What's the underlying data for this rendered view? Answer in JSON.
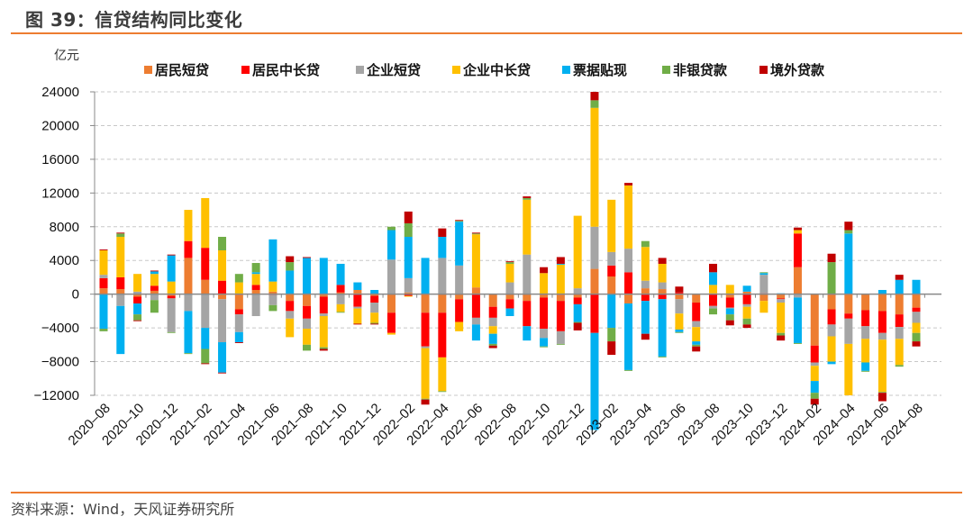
{
  "header": {
    "title": "图 39：信贷结构同比变化"
  },
  "footer": {
    "source": "资料来源：Wind，天风证券研究所"
  },
  "chart_data": {
    "type": "bar",
    "stacked": true,
    "title": "图 39：信贷结构同比变化",
    "ylabel": "亿元",
    "xlabel": "",
    "ylim": [
      -12000,
      24000
    ],
    "yticks": [
      24000,
      20000,
      16000,
      12000,
      8000,
      4000,
      0,
      -4000,
      -8000,
      -12000
    ],
    "ytick_labels": [
      "24000",
      "20000",
      "16000",
      "12000",
      "8000",
      "4000",
      "0",
      "−4000",
      "−8000",
      "−12000"
    ],
    "grid": true,
    "legend_position": "top",
    "categories": [
      "2020-08",
      "2020-09",
      "2020-10",
      "2020-11",
      "2020-12",
      "2021-01",
      "2021-02",
      "2021-03",
      "2021-04",
      "2021-05",
      "2021-06",
      "2021-07",
      "2021-08",
      "2021-09",
      "2021-10",
      "2021-11",
      "2021-12",
      "2022-01",
      "2022-02",
      "2022-03",
      "2022-04",
      "2022-05",
      "2022-06",
      "2022-07",
      "2022-08",
      "2022-09",
      "2022-10",
      "2022-11",
      "2022-12",
      "2023-01",
      "2023-02",
      "2023-03",
      "2023-04",
      "2023-05",
      "2023-06",
      "2023-07",
      "2023-08",
      "2023-09",
      "2023-10",
      "2023-11",
      "2023-12",
      "2024-01",
      "2024-02",
      "2024-03",
      "2024-04",
      "2024-05",
      "2024-06",
      "2024-07",
      "2024-08"
    ],
    "xtick_labels": [
      "2020–08",
      "2020–10",
      "2020–12",
      "2021–02",
      "2021–04",
      "2021–06",
      "2021–08",
      "2021–10",
      "2021–12",
      "2022–02",
      "2022–04",
      "2022–06",
      "2022–08",
      "2022–10",
      "2022–12",
      "2023–02",
      "2023–04",
      "2023–06",
      "2023–08",
      "2023–10",
      "2023–12",
      "2024–02",
      "2024–04",
      "2024–06",
      "2024–08"
    ],
    "series": [
      {
        "name": "居民短贷",
        "color": "#ED7D31",
        "values": [
          700,
          600,
          -300,
          400,
          -200,
          4300,
          1700,
          -600,
          -1800,
          500,
          300,
          -800,
          -1400,
          -300,
          200,
          500,
          -200,
          -2200,
          200,
          -2200,
          -2200,
          -600,
          800,
          -1500,
          -600,
          -800,
          -400,
          -800,
          -400,
          3000,
          2100,
          -1100,
          700,
          600,
          -600,
          -1000,
          100,
          -400,
          300,
          -800,
          -500,
          3200,
          -6100,
          -1800,
          -2300,
          -1900,
          -2000,
          -2400,
          -1600
        ]
      },
      {
        "name": "居民中长贷",
        "color": "#FF0000",
        "values": [
          1200,
          1400,
          -800,
          600,
          -300,
          2000,
          3800,
          1600,
          -600,
          600,
          -100,
          -1200,
          -1500,
          -2000,
          900,
          -1500,
          -800,
          -2400,
          -200,
          -4000,
          -5300,
          -2700,
          -2800,
          -1300,
          -1100,
          -3000,
          -3700,
          -3600,
          -800,
          -4600,
          1300,
          2600,
          -800,
          -600,
          200,
          -2200,
          -1400,
          -1200,
          -1200,
          100,
          -100,
          4000,
          -2000,
          -1800,
          -600,
          -1900,
          -2600,
          -1500,
          -500
        ]
      },
      {
        "name": "企业短贷",
        "color": "#A5A5A5",
        "values": [
          400,
          -1400,
          300,
          -700,
          -4000,
          -2000,
          -4000,
          -5100,
          -2100,
          -2600,
          -1200,
          -900,
          -1200,
          -300,
          -1200,
          -200,
          -1200,
          4100,
          1700,
          -200,
          4300,
          3400,
          -800,
          -1000,
          1400,
          4700,
          -1100,
          -1500,
          700,
          5000,
          1600,
          2800,
          900,
          800,
          -1700,
          -700,
          -300,
          -100,
          -300,
          2200,
          -400,
          -400,
          -400,
          -1400,
          -3000,
          -1500,
          -800,
          -1400,
          -1300
        ]
      },
      {
        "name": "企业中长贷",
        "color": "#FFC000",
        "values": [
          2900,
          4800,
          2100,
          1400,
          1500,
          3700,
          5900,
          3600,
          1400,
          1300,
          1200,
          -2200,
          -1900,
          -3700,
          -900,
          -1800,
          -1200,
          -200,
          -100,
          -6000,
          -4000,
          -1100,
          6300,
          -900,
          2200,
          6500,
          2500,
          3500,
          8600,
          14100,
          6200,
          7500,
          4000,
          2200,
          -1900,
          -1700,
          1000,
          1100,
          -1400,
          -1400,
          -3600,
          400,
          -1800,
          -3000,
          -6100,
          -2800,
          -6200,
          -3100,
          -1200
        ]
      },
      {
        "name": "票据贴现",
        "color": "#00B0F0",
        "values": [
          -4100,
          -5700,
          -1300,
          300,
          3100,
          -5000,
          -2500,
          -3600,
          -1200,
          200,
          5000,
          2800,
          4300,
          4300,
          2500,
          900,
          500,
          3500,
          4900,
          4300,
          2500,
          5200,
          -1900,
          -1200,
          -900,
          -1700,
          -1000,
          100,
          -2100,
          -11500,
          -4000,
          -7900,
          -3900,
          -6800,
          -300,
          -400,
          1500,
          -700,
          700,
          200,
          100,
          -5400,
          -1400,
          -300,
          7200,
          -1000,
          500,
          1700,
          1700
        ]
      },
      {
        "name": "非银贷款",
        "color": "#70AD47",
        "values": [
          -300,
          400,
          -700,
          -1500,
          -100,
          -100,
          -1700,
          1600,
          1000,
          1100,
          -700,
          1000,
          -700,
          -200,
          -100,
          0,
          -100,
          400,
          1600,
          -100,
          -100,
          100,
          100,
          -200,
          200,
          200,
          -100,
          -100,
          -100,
          900,
          -1600,
          -100,
          700,
          -100,
          -100,
          -200,
          -700,
          -700,
          -700,
          100,
          -300,
          -100,
          -700,
          3800,
          400,
          -100,
          -100,
          -200,
          -1000
        ]
      },
      {
        "name": "境外贷款",
        "color": "#C00000",
        "values": [
          100,
          100,
          -100,
          100,
          100,
          0,
          -100,
          -100,
          -100,
          0,
          0,
          700,
          100,
          -200,
          0,
          -100,
          -100,
          0,
          1400,
          -600,
          1000,
          100,
          100,
          -300,
          100,
          200,
          700,
          800,
          -900,
          1000,
          -1600,
          300,
          -700,
          700,
          700,
          -600,
          1000,
          -600,
          -400,
          0,
          -600,
          300,
          -700,
          1000,
          1000,
          0,
          -1000,
          600,
          -600
        ]
      }
    ]
  }
}
